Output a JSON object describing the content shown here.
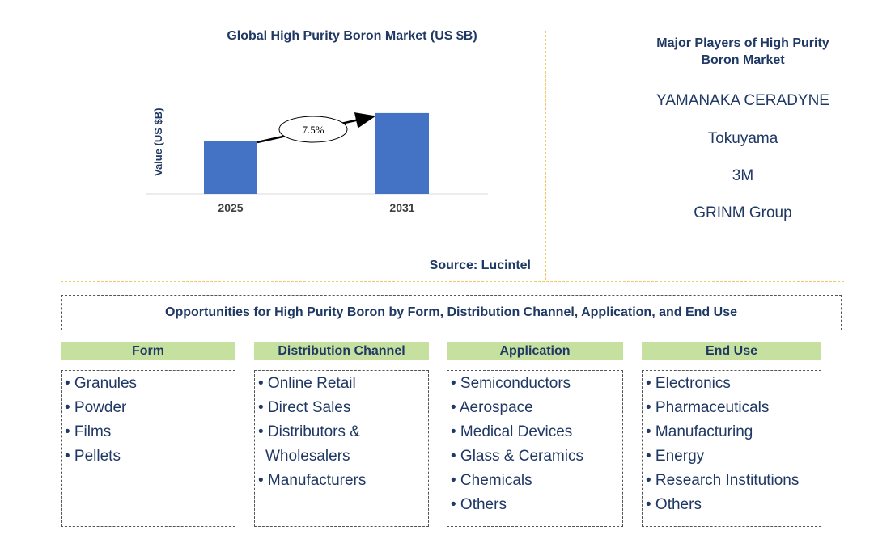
{
  "chart_data": {
    "type": "bar",
    "title": "Global High Purity Boron Market (US $B)",
    "ylabel": "Value (US $B)",
    "xlabel": "",
    "categories": [
      "2025",
      "2031"
    ],
    "values": [
      1.0,
      1.54
    ],
    "ylim": [
      0,
      2.0
    ],
    "annotation": "7.5%",
    "colors": {
      "bar": "#4472c4",
      "axis": "#d9d9d9",
      "arrow": "#000000"
    },
    "grid": false
  },
  "source": "Source: Lucintel",
  "players": {
    "title": "Major Players of High Purity Boron Market",
    "names": [
      "YAMANAKA CERADYNE",
      "Tokuyama",
      "3M",
      "GRINM Group"
    ]
  },
  "opportunities": {
    "title": "Opportunities for High Purity Boron by Form, Distribution Channel, Application, and End Use"
  },
  "categories": {
    "form": {
      "title": "Form",
      "items": [
        "• Granules",
        "• Powder",
        "• Films",
        "• Pellets"
      ]
    },
    "distribution": {
      "title": "Distribution Channel",
      "items": [
        "• Online Retail",
        "• Direct Sales",
        "• Distributors &",
        "Wholesalers",
        "• Manufacturers"
      ]
    },
    "application": {
      "title": "Application",
      "items": [
        "• Semiconductors",
        "• Aerospace",
        "• Medical Devices",
        "• Glass & Ceramics",
        "• Chemicals",
        "• Others"
      ]
    },
    "end_use": {
      "title": "End Use",
      "items": [
        "• Electronics",
        "• Pharmaceuticals",
        "• Manufacturing",
        "• Energy",
        "• Research Institutions",
        "• Others"
      ]
    }
  },
  "colors": {
    "header_fill": "#c6e0a0",
    "text": "#1f3864",
    "separator": "#f0c96a"
  }
}
